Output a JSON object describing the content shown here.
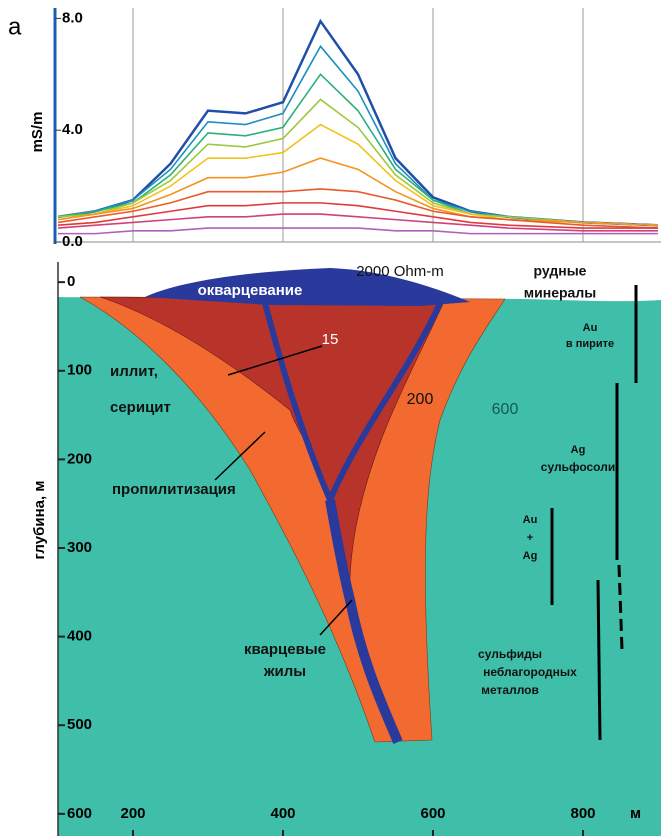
{
  "panel_label": "a",
  "chart_data": [
    {
      "type": "line",
      "ylabel": "mS/m",
      "x": [
        100,
        150,
        200,
        250,
        300,
        350,
        400,
        450,
        500,
        550,
        600,
        650,
        700,
        800,
        900
      ],
      "xlim": [
        100,
        904
      ],
      "ylim": [
        0,
        8.3
      ],
      "yticks": [
        {
          "value": 0,
          "label": "0.0"
        },
        {
          "value": 4,
          "label": "4.0"
        },
        {
          "value": 8,
          "label": "8.0"
        }
      ],
      "series": [
        {
          "color": "#1f4fa8",
          "values": [
            0.9,
            1.1,
            1.5,
            2.8,
            4.7,
            4.6,
            5.0,
            7.9,
            6.0,
            3.0,
            1.6,
            1.1,
            0.9,
            0.7,
            0.6
          ]
        },
        {
          "color": "#1c8fc0",
          "values": [
            0.9,
            1.1,
            1.5,
            2.6,
            4.3,
            4.2,
            4.6,
            7.0,
            5.4,
            2.8,
            1.5,
            1.1,
            0.9,
            0.7,
            0.6
          ]
        },
        {
          "color": "#2bb07a",
          "values": [
            0.9,
            1.1,
            1.4,
            2.4,
            3.9,
            3.8,
            4.1,
            6.0,
            4.7,
            2.6,
            1.5,
            1.0,
            0.9,
            0.7,
            0.6
          ]
        },
        {
          "color": "#9cc93a",
          "values": [
            0.9,
            1.0,
            1.4,
            2.2,
            3.5,
            3.4,
            3.7,
            5.1,
            4.1,
            2.4,
            1.4,
            1.0,
            0.9,
            0.7,
            0.6
          ]
        },
        {
          "color": "#f2c21c",
          "values": [
            0.8,
            1.0,
            1.3,
            2.0,
            3.0,
            3.0,
            3.2,
            4.2,
            3.5,
            2.2,
            1.3,
            1.0,
            0.8,
            0.7,
            0.6
          ]
        },
        {
          "color": "#f5941f",
          "values": [
            0.8,
            1.0,
            1.2,
            1.7,
            2.3,
            2.3,
            2.5,
            3.0,
            2.6,
            1.8,
            1.2,
            0.9,
            0.8,
            0.7,
            0.6
          ]
        },
        {
          "color": "#ec5a2a",
          "values": [
            0.7,
            0.9,
            1.1,
            1.4,
            1.8,
            1.8,
            1.8,
            1.9,
            1.8,
            1.5,
            1.1,
            0.9,
            0.8,
            0.6,
            0.5
          ]
        },
        {
          "color": "#e03a3c",
          "values": [
            0.6,
            0.7,
            0.9,
            1.1,
            1.3,
            1.3,
            1.4,
            1.4,
            1.3,
            1.1,
            0.9,
            0.7,
            0.6,
            0.5,
            0.5
          ]
        },
        {
          "color": "#d0407a",
          "values": [
            0.5,
            0.6,
            0.7,
            0.8,
            0.9,
            0.9,
            1.0,
            1.0,
            0.9,
            0.8,
            0.7,
            0.6,
            0.5,
            0.4,
            0.4
          ]
        },
        {
          "color": "#b060c0",
          "values": [
            0.3,
            0.3,
            0.4,
            0.4,
            0.5,
            0.5,
            0.5,
            0.5,
            0.5,
            0.4,
            0.4,
            0.3,
            0.3,
            0.3,
            0.3
          ]
        }
      ]
    },
    {
      "type": "section",
      "ylabel": "глубина, м",
      "xlabel": "м",
      "xlim": [
        100,
        904
      ],
      "ylim": [
        -25,
        625
      ],
      "xticks": [
        200,
        400,
        600,
        800
      ],
      "yticks": [
        0,
        100,
        200,
        300,
        400,
        500,
        600
      ],
      "annotations": [
        "2000 Ohm-m",
        "окварцевание",
        "15",
        "иллит,",
        "серицит",
        "200",
        "600",
        "пропилитизация",
        "кварцевые",
        "жилы",
        "рудные",
        "минералы",
        "Au",
        "в пирите",
        "Ag",
        "сульфосоли",
        "Au",
        "+",
        "Ag",
        "сульфиды",
        "неблагородных",
        "металлов"
      ]
    }
  ]
}
